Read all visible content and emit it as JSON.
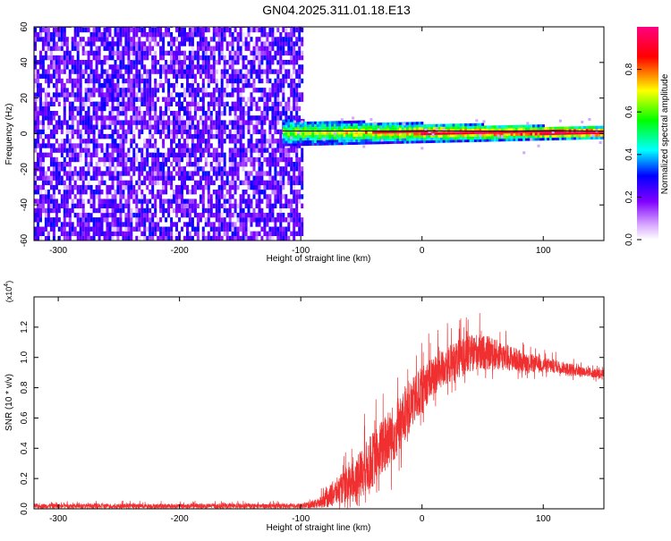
{
  "title": "GN04.2025.311.01.18.E13",
  "chart_data": [
    {
      "type": "heatmap",
      "xlabel": "Height of straight line (km)",
      "ylabel": "Frequency (Hz)",
      "xlim": [
        -320,
        150
      ],
      "ylim": [
        -60,
        60
      ],
      "xticks": [
        -300,
        -200,
        -100,
        0,
        100
      ],
      "yticks": [
        -60,
        -40,
        -20,
        0,
        20,
        40,
        60
      ],
      "grid": false,
      "colorbar": {
        "label": "Normalized spectral amplitude",
        "range": [
          0.0,
          1.0
        ],
        "ticks": [
          "0.0",
          "0.2",
          "0.4",
          "0.6",
          "0.8"
        ],
        "colormap": [
          "#ffffff",
          "#8000ff",
          "#0000ff",
          "#00ffff",
          "#00ff00",
          "#ffff00",
          "#ff0000",
          "#ff0080"
        ]
      },
      "regions": [
        {
          "x": [
            -320,
            -100
          ],
          "y": [
            -60,
            60
          ],
          "amplitude": [
            0.1,
            0.3
          ],
          "note": "noise"
        },
        {
          "x": [
            -115,
            150
          ],
          "y_center": 0,
          "amplitude": [
            0.4,
            1.0
          ],
          "note": "signal band"
        }
      ],
      "reference_line": {
        "y": 0
      }
    },
    {
      "type": "line",
      "xlabel": "Height of straight line (km)",
      "ylabel": "SNR (10 * v/v)",
      "y_multiplier": "(x10^4)",
      "multiplier_base": "(x10",
      "multiplier_exp": "4",
      "multiplier_close": ")",
      "xlim": [
        -320,
        150
      ],
      "ylim": [
        0,
        1.4
      ],
      "xticks": [
        -300,
        -200,
        -100,
        0,
        100
      ],
      "yticks": [
        "0.0",
        "0.2",
        "0.4",
        "0.6",
        "0.8",
        "1.0",
        "1.2"
      ],
      "color": "#f03030",
      "grid": false,
      "envelope": {
        "x": [
          -320,
          -100,
          -85,
          -75,
          -65,
          -55,
          -45,
          -35,
          -25,
          -15,
          -5,
          5,
          15,
          25,
          35,
          45,
          55,
          65,
          75,
          85,
          95,
          105,
          115,
          125,
          135,
          150
        ],
        "y_mid": [
          0.02,
          0.02,
          0.04,
          0.1,
          0.15,
          0.2,
          0.3,
          0.4,
          0.5,
          0.62,
          0.75,
          0.86,
          0.93,
          0.98,
          1.02,
          1.05,
          1.04,
          1.02,
          1.0,
          0.98,
          0.96,
          0.95,
          0.94,
          0.92,
          0.91,
          0.89
        ],
        "spread": [
          0.02,
          0.02,
          0.04,
          0.1,
          0.13,
          0.18,
          0.22,
          0.24,
          0.25,
          0.22,
          0.2,
          0.18,
          0.16,
          0.16,
          0.16,
          0.15,
          0.14,
          0.12,
          0.1,
          0.08,
          0.07,
          0.06,
          0.05,
          0.05,
          0.04,
          0.04
        ]
      }
    }
  ]
}
